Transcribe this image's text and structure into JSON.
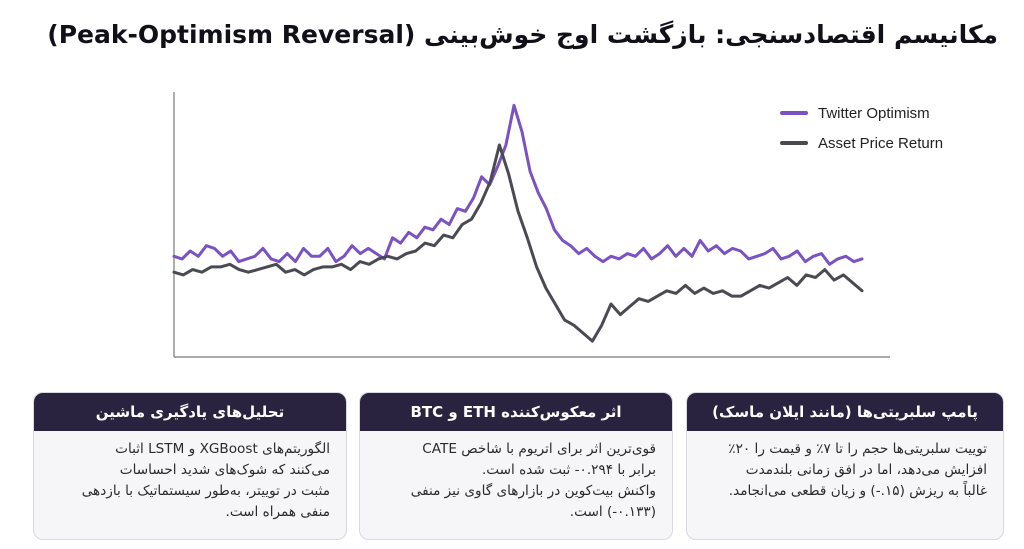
{
  "title": "مکانیسم اقتصادسنجی: بازگشت اوج خوش‌بینی (Peak-Optimism Reversal)",
  "chart_data": {
    "type": "line",
    "title": "",
    "xlabel": "",
    "ylabel": "",
    "grid": false,
    "legend_placement": "top-right",
    "ylim": [
      0,
      100
    ],
    "series": [
      {
        "name": "Twitter Optimism",
        "color": "#7a52c2",
        "values": [
          38,
          37,
          40,
          38,
          42,
          41,
          38,
          40,
          36,
          37,
          38,
          41,
          37,
          36,
          39,
          36,
          41,
          38,
          38,
          41,
          36,
          38,
          42,
          39,
          41,
          39,
          37,
          45,
          43,
          47,
          45,
          49,
          48,
          52,
          50,
          56,
          55,
          60,
          68,
          65,
          72,
          80,
          95,
          85,
          70,
          62,
          56,
          48,
          44,
          42,
          39,
          41,
          38,
          36,
          38,
          37,
          39,
          38,
          41,
          37,
          39,
          42,
          38,
          41,
          38,
          44,
          40,
          42,
          39,
          41,
          40,
          37,
          38,
          39,
          41,
          37,
          38,
          40,
          36,
          38,
          39,
          35,
          37,
          38,
          36,
          37
        ],
        "x_end": 86
      },
      {
        "name": "Asset Price Return",
        "color": "#4a4a52",
        "values": [
          32,
          31,
          33,
          32,
          34,
          34,
          35,
          33,
          32,
          33,
          34,
          35,
          32,
          33,
          31,
          33,
          34,
          34,
          35,
          33,
          36,
          35,
          37,
          38,
          37,
          39,
          40,
          43,
          42,
          46,
          45,
          50,
          52,
          58,
          66,
          80,
          69,
          55,
          45,
          34,
          26,
          20,
          14,
          12,
          9,
          6,
          12,
          20,
          16,
          19,
          22,
          21,
          23,
          25,
          24,
          27,
          24,
          26,
          24,
          25,
          23,
          23,
          25,
          27,
          26,
          28,
          30,
          27,
          31,
          30,
          33,
          29,
          31,
          28,
          25
        ],
        "x_start": 0,
        "x_end": 86
      }
    ]
  },
  "cards": [
    {
      "heading": "پامپ سلبریتی‌ها (مانند ایلان ماسک)",
      "lines": [
        "توییت سلبریتی‌ها حجم را تا ۷٪ و قیمت را ۲۰٪",
        "افزایش می‌دهد، اما در افق زمانی بلندمدت",
        "غالباً به ریزش (۱۵.-) و زیان قطعی می‌انجامد."
      ]
    },
    {
      "heading": "اثر معکوس‌کننده ETH و BTC",
      "lines": [
        "قوی‌ترین اثر برای اتریوم با شاخص CATE",
        "برابر با ۰.۲۹۴- ثبت شده است.",
        "واکنش بیت‌کوین در بازارهای گاوی نیز منفی",
        "(۰.۱۳۳-) است."
      ]
    },
    {
      "heading": "تحلیل‌های یادگیری ماشین",
      "lines": [
        "الگوریتم‌های XGBoost و LSTM اثبات",
        "می‌کنند که شوک‌های شدید احساسات",
        "مثبت در توییتر، به‌طور سیستماتیک با بازدهی",
        "منفی همراه است."
      ]
    }
  ]
}
